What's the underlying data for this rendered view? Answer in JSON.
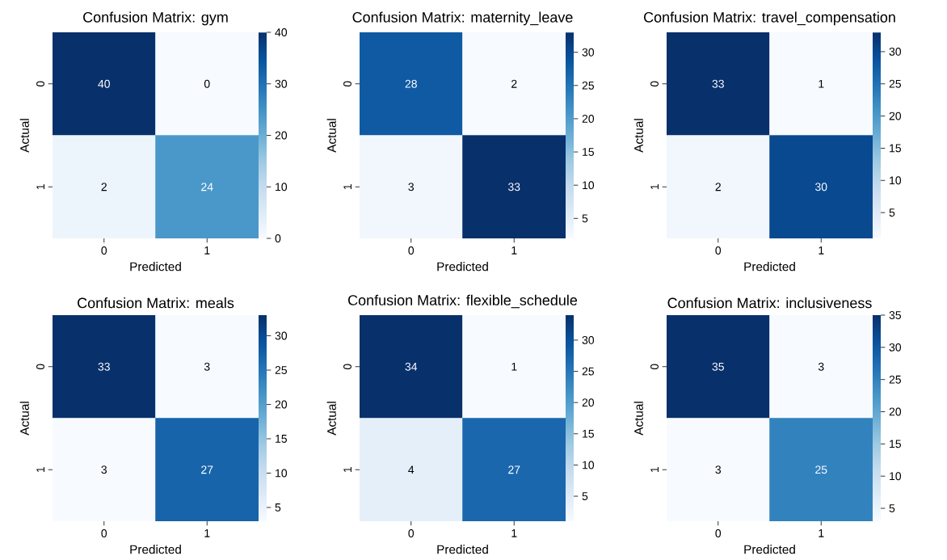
{
  "chart_data": [
    {
      "type": "heatmap",
      "title": "Confusion Matrix: gym",
      "xlabel": "Predicted",
      "ylabel": "Actual",
      "categories": [
        "0",
        "1"
      ],
      "y_categories": [
        "0",
        "1"
      ],
      "cells": [
        [
          40,
          0
        ],
        [
          2,
          24
        ]
      ],
      "clim": [
        0,
        40
      ],
      "cticks": [
        0,
        10,
        20,
        30,
        40
      ],
      "data_labels": true
    },
    {
      "type": "heatmap",
      "title": "Confusion Matrix: maternity_leave",
      "xlabel": "Predicted",
      "ylabel": "Actual",
      "categories": [
        "0",
        "1"
      ],
      "y_categories": [
        "0",
        "1"
      ],
      "cells": [
        [
          28,
          2
        ],
        [
          3,
          33
        ]
      ],
      "clim": [
        2,
        33
      ],
      "cticks": [
        5,
        10,
        15,
        20,
        25,
        30
      ],
      "data_labels": true
    },
    {
      "type": "heatmap",
      "title": "Confusion Matrix: travel_compensation",
      "xlabel": "Predicted",
      "ylabel": "Actual",
      "categories": [
        "0",
        "1"
      ],
      "y_categories": [
        "0",
        "1"
      ],
      "cells": [
        [
          33,
          1
        ],
        [
          2,
          30
        ]
      ],
      "clim": [
        1,
        33
      ],
      "cticks": [
        5,
        10,
        15,
        20,
        25,
        30
      ],
      "data_labels": true
    },
    {
      "type": "heatmap",
      "title": "Confusion Matrix: meals",
      "xlabel": "Predicted",
      "ylabel": "Actual",
      "categories": [
        "0",
        "1"
      ],
      "y_categories": [
        "0",
        "1"
      ],
      "cells": [
        [
          33,
          3
        ],
        [
          3,
          27
        ]
      ],
      "clim": [
        3,
        33
      ],
      "cticks": [
        5,
        10,
        15,
        20,
        25,
        30
      ],
      "data_labels": true
    },
    {
      "type": "heatmap",
      "title": "Confusion Matrix: flexible_schedule",
      "xlabel": "Predicted",
      "ylabel": "Actual",
      "categories": [
        "0",
        "1"
      ],
      "y_categories": [
        "0",
        "1"
      ],
      "cells": [
        [
          34,
          1
        ],
        [
          4,
          27
        ]
      ],
      "clim": [
        1,
        34
      ],
      "cticks": [
        5,
        10,
        15,
        20,
        25,
        30
      ],
      "data_labels": true
    },
    {
      "type": "heatmap",
      "title": "Confusion Matrix: inclusiveness",
      "xlabel": "Predicted",
      "ylabel": "Actual",
      "categories": [
        "0",
        "1"
      ],
      "y_categories": [
        "0",
        "1"
      ],
      "cells": [
        [
          35,
          3
        ],
        [
          3,
          25
        ]
      ],
      "clim": [
        3,
        35
      ],
      "cticks": [
        5,
        10,
        15,
        20,
        25,
        30,
        35
      ],
      "data_labels": true
    }
  ]
}
